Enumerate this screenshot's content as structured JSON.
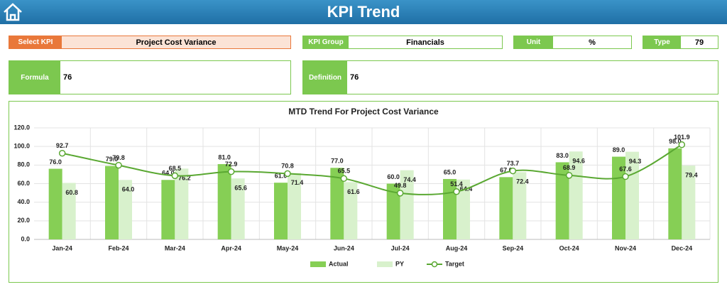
{
  "header": {
    "title": "KPI Trend"
  },
  "fields": {
    "select_kpi": {
      "label": "Select KPI",
      "value": "Project Cost Variance"
    },
    "kpi_group": {
      "label": "KPI Group",
      "value": "Financials"
    },
    "unit": {
      "label": "Unit",
      "value": "%"
    },
    "type": {
      "label": "Type",
      "value": "79"
    },
    "formula": {
      "label": "Formula",
      "value": "76"
    },
    "definition": {
      "label": "Definition",
      "value": "76"
    }
  },
  "chart_data": {
    "type": "bar",
    "title": "MTD Trend For Project Cost Variance",
    "categories": [
      "Jan-24",
      "Feb-24",
      "Mar-24",
      "Apr-24",
      "May-24",
      "Jun-24",
      "Jul-24",
      "Aug-24",
      "Sep-24",
      "Oct-24",
      "Nov-24",
      "Dec-24"
    ],
    "series": [
      {
        "name": "Actual",
        "type": "bar",
        "color": "#86cf55",
        "values": [
          76,
          79,
          64,
          81,
          61,
          77,
          60,
          65,
          67,
          83,
          89,
          98
        ],
        "value_labels": [
          "76.0",
          "79.0",
          "64.0",
          "81.0",
          "61.0",
          "77.0",
          "60.0",
          "65.0",
          "67.0",
          "83.0",
          "89.0",
          "98.0"
        ]
      },
      {
        "name": "PY",
        "type": "bar",
        "color": "#d8f1cc",
        "values": [
          60.8,
          64.0,
          76.2,
          65.6,
          71.4,
          61.6,
          74.4,
          64.4,
          72.4,
          94.6,
          94.3,
          79.4
        ],
        "value_labels": [
          "60.8",
          "64.0",
          "76.2",
          "65.6",
          "71.4",
          "61.6",
          "74.4",
          "64.4",
          "72.4",
          "94.6",
          "94.3",
          "79.4"
        ]
      },
      {
        "name": "Target",
        "type": "line",
        "color": "#5aa832",
        "values": [
          92.7,
          79.8,
          68.5,
          72.9,
          70.8,
          65.5,
          49.8,
          51.4,
          73.7,
          68.9,
          67.6,
          101.9
        ]
      }
    ],
    "ylim": [
      0,
      120
    ],
    "yticks": [
      {
        "value": 0,
        "label": "0.0"
      },
      {
        "value": 20,
        "label": "20.0"
      },
      {
        "value": 40,
        "label": "40.0"
      },
      {
        "value": 60,
        "label": "60.0"
      },
      {
        "value": 80,
        "label": "80.0"
      },
      {
        "value": 100,
        "label": "100.0"
      },
      {
        "value": 120,
        "label": "120.0"
      }
    ],
    "grid": true,
    "legend": "bottom"
  }
}
